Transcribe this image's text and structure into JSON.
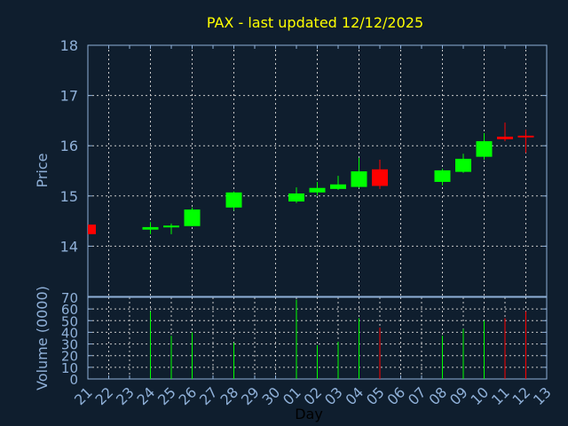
{
  "chart_data": [
    {
      "type": "candlestick",
      "title": "PAX - last updated 12/12/2025",
      "ylabel": "Price",
      "ylim": [
        13,
        18
      ],
      "yticks": [
        "14",
        "15",
        "16",
        "17",
        "18"
      ],
      "xlim": [
        "2025-11-21",
        "2025-12-13"
      ],
      "grid": true,
      "colors": {
        "up": "#00ff00",
        "down": "#ff0000",
        "title": "#ffff00",
        "axis": "#8fb0d8",
        "grid": "#c8c8c8",
        "background": "#0f1e2e"
      },
      "candles": [
        {
          "date": "2025-11-21",
          "open": 14.43,
          "high": 14.43,
          "low": 14.24,
          "close": 14.24
        },
        {
          "date": "2025-11-24",
          "open": 14.33,
          "high": 14.48,
          "low": 14.24,
          "close": 14.38
        },
        {
          "date": "2025-11-25",
          "open": 14.38,
          "high": 14.45,
          "low": 14.24,
          "close": 14.41
        },
        {
          "date": "2025-11-26",
          "open": 14.4,
          "high": 14.77,
          "low": 14.4,
          "close": 14.73
        },
        {
          "date": "2025-11-28",
          "open": 14.77,
          "high": 15.09,
          "low": 14.71,
          "close": 15.07
        },
        {
          "date": "2025-12-01",
          "open": 14.89,
          "high": 15.17,
          "low": 14.86,
          "close": 15.05
        },
        {
          "date": "2025-12-02",
          "open": 15.07,
          "high": 15.28,
          "low": 15.01,
          "close": 15.16
        },
        {
          "date": "2025-12-03",
          "open": 15.14,
          "high": 15.4,
          "low": 15.12,
          "close": 15.23
        },
        {
          "date": "2025-12-04",
          "open": 15.18,
          "high": 15.76,
          "low": 15.16,
          "close": 15.49
        },
        {
          "date": "2025-12-05",
          "open": 15.53,
          "high": 15.72,
          "low": 15.14,
          "close": 15.2
        },
        {
          "date": "2025-12-08",
          "open": 15.28,
          "high": 15.54,
          "low": 15.21,
          "close": 15.51
        },
        {
          "date": "2025-12-09",
          "open": 15.48,
          "high": 15.84,
          "low": 15.46,
          "close": 15.74
        },
        {
          "date": "2025-12-10",
          "open": 15.78,
          "high": 16.25,
          "low": 15.72,
          "close": 16.09
        },
        {
          "date": "2025-12-11",
          "open": 16.18,
          "high": 16.46,
          "low": 16.09,
          "close": 16.13
        },
        {
          "date": "2025-12-12",
          "open": 16.2,
          "high": 16.32,
          "low": 15.86,
          "close": 16.17
        }
      ]
    },
    {
      "type": "bar",
      "ylabel": "Volume (0000)",
      "xlabel": "Day",
      "ylim": [
        0,
        70
      ],
      "yticks": [
        "0",
        "10",
        "20",
        "30",
        "40",
        "50",
        "60",
        "70"
      ],
      "xticklabels": [
        "21",
        "22",
        "23",
        "24",
        "25",
        "26",
        "27",
        "28",
        "29",
        "30",
        "01",
        "02",
        "03",
        "04",
        "05",
        "06",
        "07",
        "08",
        "09",
        "10",
        "11",
        "12",
        "13"
      ],
      "grid": true,
      "bars": [
        {
          "date": "2025-11-24",
          "value": 58,
          "dir": "up"
        },
        {
          "date": "2025-11-25",
          "value": 37,
          "dir": "up"
        },
        {
          "date": "2025-11-26",
          "value": 40,
          "dir": "up"
        },
        {
          "date": "2025-11-28",
          "value": 31,
          "dir": "up"
        },
        {
          "date": "2025-12-01",
          "value": 68,
          "dir": "up"
        },
        {
          "date": "2025-12-02",
          "value": 29,
          "dir": "up"
        },
        {
          "date": "2025-12-03",
          "value": 32,
          "dir": "up"
        },
        {
          "date": "2025-12-04",
          "value": 52,
          "dir": "up"
        },
        {
          "date": "2025-12-05",
          "value": 44,
          "dir": "down"
        },
        {
          "date": "2025-12-08",
          "value": 37,
          "dir": "up"
        },
        {
          "date": "2025-12-09",
          "value": 43,
          "dir": "up"
        },
        {
          "date": "2025-12-10",
          "value": 50,
          "dir": "up"
        },
        {
          "date": "2025-12-11",
          "value": 52,
          "dir": "down"
        },
        {
          "date": "2025-12-12",
          "value": 58,
          "dir": "down"
        }
      ]
    }
  ]
}
